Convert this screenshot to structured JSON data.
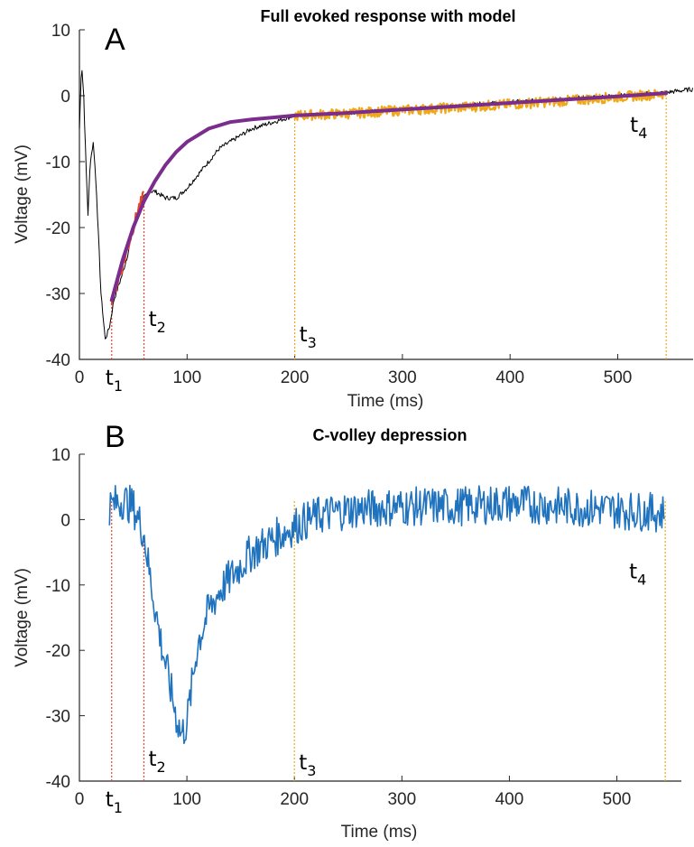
{
  "chart_data": [
    {
      "panel_label": "A",
      "type": "line",
      "title": "Full evoked response with model",
      "xlabel": "Time (ms)",
      "ylabel": "Voltage (mV)",
      "xlim": [
        0,
        570
      ],
      "ylim": [
        -40,
        10
      ],
      "xticks": [
        0,
        100,
        200,
        300,
        400,
        500
      ],
      "yticks": [
        -40,
        -30,
        -20,
        -10,
        0,
        10
      ],
      "grid": false,
      "legend": "none",
      "colors": {
        "raw": "#000000",
        "fit_region_early": "#e8442a",
        "fit_region_late": "#f0a818",
        "model": "#7b2d8e",
        "marker_red": "#e8442a",
        "marker_orange": "#f0a818"
      },
      "series": [
        {
          "role": "raw-trace",
          "color": "#000000",
          "x": [
            0,
            2,
            4,
            6,
            8,
            10,
            13,
            16,
            20,
            24,
            28,
            32,
            36,
            40,
            45,
            50,
            55,
            60,
            65,
            70,
            80,
            90,
            100,
            110,
            120,
            130,
            140,
            150,
            160,
            170,
            180,
            190,
            200,
            250,
            300,
            350,
            400,
            450,
            500,
            545,
            570
          ],
          "y": [
            -5,
            5,
            0,
            -10,
            -18,
            -10,
            -7,
            -15,
            -30,
            -37,
            -35,
            -31,
            -29,
            -27,
            -24,
            -20,
            -17,
            -15.5,
            -14.5,
            -14.5,
            -15.5,
            -15.5,
            -14,
            -12,
            -10,
            -8,
            -7,
            -6,
            -5,
            -4.5,
            -4,
            -3.5,
            -3,
            -2.7,
            -2,
            -1.5,
            -1,
            -0.5,
            0,
            0.5,
            1
          ]
        },
        {
          "role": "fit-region-early",
          "color": "#e8442a",
          "x": [
            30,
            40,
            50,
            55,
            60
          ],
          "y": [
            -31,
            -26,
            -20,
            -17,
            -15
          ]
        },
        {
          "role": "fit-region-late",
          "color": "#f0a818",
          "x": [
            200,
            250,
            300,
            350,
            400,
            450,
            500,
            545
          ],
          "y": [
            -3,
            -2.7,
            -2.2,
            -1.8,
            -1.3,
            -0.8,
            -0.2,
            0.3
          ]
        },
        {
          "role": "model",
          "color": "#7b2d8e",
          "x": [
            30,
            40,
            50,
            60,
            70,
            80,
            90,
            100,
            120,
            140,
            160,
            180,
            200,
            250,
            300,
            350,
            400,
            450,
            500,
            545
          ],
          "y": [
            -31,
            -25,
            -20,
            -16,
            -13,
            -10.5,
            -8.5,
            -7,
            -5,
            -4,
            -3.6,
            -3.3,
            -3,
            -2.6,
            -2.1,
            -1.6,
            -1.1,
            -0.6,
            -0.1,
            0.4
          ]
        }
      ],
      "markers": [
        {
          "base": "t",
          "sub": "1",
          "x": 30,
          "color": "#e8442a",
          "label_pos": "bottom"
        },
        {
          "base": "t",
          "sub": "2",
          "x": 60,
          "color": "#e8442a",
          "label_pos": "low"
        },
        {
          "base": "t",
          "sub": "3",
          "x": 200,
          "color": "#f0a818",
          "label_pos": "low"
        },
        {
          "base": "t",
          "sub": "4",
          "x": 545,
          "color": "#f0a818",
          "label_pos": "high"
        }
      ]
    },
    {
      "panel_label": "B",
      "type": "line",
      "title": "C-volley depression",
      "xlabel": "Time (ms)",
      "ylabel": "Voltage (mV)",
      "xlim": [
        0,
        560
      ],
      "ylim": [
        -40,
        10
      ],
      "xticks": [
        0,
        100,
        200,
        300,
        400,
        500
      ],
      "yticks": [
        -40,
        -30,
        -20,
        -10,
        0,
        10
      ],
      "grid": false,
      "legend": "none",
      "colors": {
        "trace": "#1f72bd",
        "marker_red": "#e8442a",
        "marker_orange": "#f0a818"
      },
      "series": [
        {
          "role": "difference-trace",
          "color": "#1f72bd",
          "x": [
            28,
            40,
            50,
            60,
            65,
            70,
            75,
            80,
            85,
            90,
            95,
            100,
            105,
            110,
            120,
            130,
            140,
            150,
            160,
            170,
            180,
            190,
            200,
            220,
            250,
            300,
            350,
            400,
            450,
            500,
            545
          ],
          "y": [
            2,
            3,
            2,
            -2,
            -8,
            -13,
            -18,
            -22,
            -26,
            -30,
            -33,
            -31,
            -25,
            -19,
            -14,
            -11,
            -9,
            -7,
            -5,
            -4,
            -3,
            -2,
            -1,
            0.5,
            1.5,
            2,
            2,
            2.5,
            2,
            1.5,
            1
          ],
          "noise_amplitude": 3
        }
      ],
      "markers": [
        {
          "base": "t",
          "sub": "1",
          "x": 30,
          "color": "#e8442a",
          "label_pos": "bottom"
        },
        {
          "base": "t",
          "sub": "2",
          "x": 60,
          "color": "#e8442a",
          "label_pos": "low"
        },
        {
          "base": "t",
          "sub": "3",
          "x": 200,
          "color": "#f0a818",
          "label_pos": "low"
        },
        {
          "base": "t",
          "sub": "4",
          "x": 545,
          "color": "#f0a818",
          "label_pos": "high"
        }
      ]
    }
  ]
}
